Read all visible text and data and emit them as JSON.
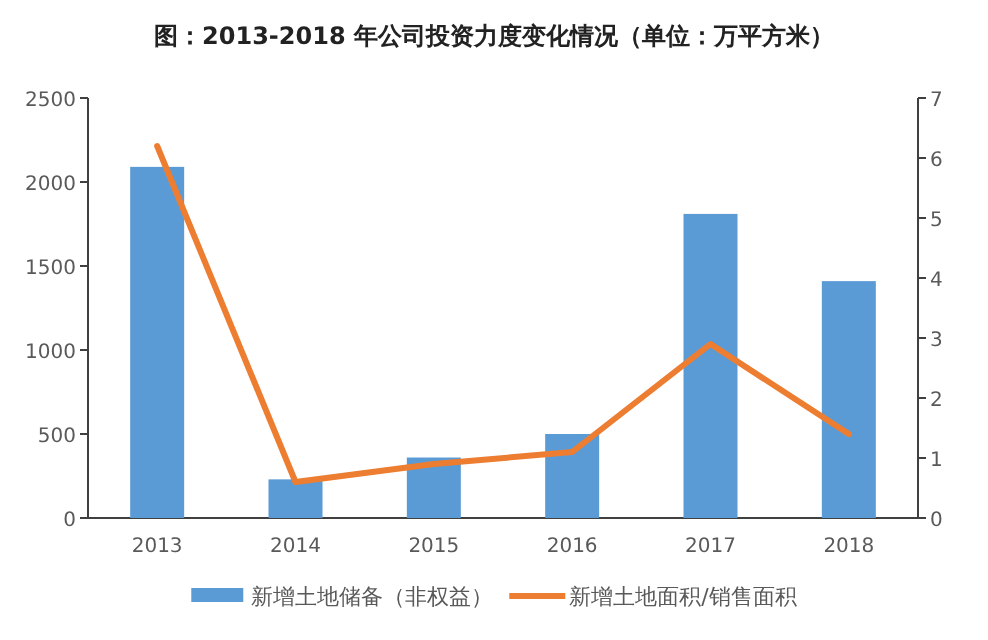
{
  "chart_data": {
    "type": "bar",
    "title": "图：2013-2018 年公司投资力度变化情况（单位：万平方米）",
    "categories": [
      "2013",
      "2014",
      "2015",
      "2016",
      "2017",
      "2018"
    ],
    "series": [
      {
        "name": "新增土地储备（非权益）",
        "color": "#5b9bd5",
        "values": [
          2090,
          230,
          360,
          500,
          1810,
          1410
        ]
      },
      {
        "name": "新增土地面积/销售面积",
        "type": "line",
        "axis": "y2",
        "color": "#ed7d31",
        "values": [
          6.2,
          0.6,
          0.9,
          1.1,
          2.9,
          1.4
        ]
      }
    ],
    "ylim": [
      0,
      2500
    ],
    "yticks": [
      0,
      500,
      1000,
      1500,
      2000,
      2500
    ],
    "y2lim": [
      0,
      7
    ],
    "y2ticks": [
      0,
      1,
      2,
      3,
      4,
      5,
      6,
      7
    ],
    "grid": false,
    "legend": "bottom"
  }
}
